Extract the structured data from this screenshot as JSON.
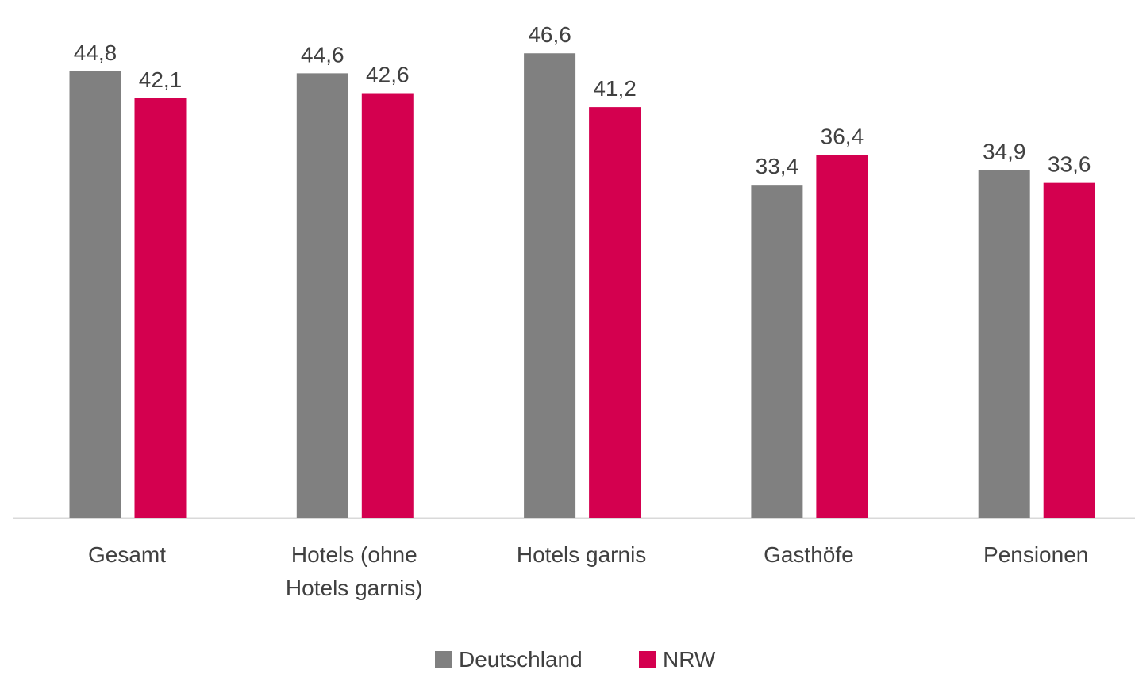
{
  "chart_data": {
    "type": "bar",
    "categories": [
      "Gesamt",
      "Hotels (ohne Hotels garnis)",
      "Hotels garnis",
      "Gasthöfe",
      "Pensionen"
    ],
    "series": [
      {
        "name": "Deutschland",
        "color": "#808080",
        "values": [
          44.8,
          44.6,
          46.6,
          33.4,
          34.9
        ],
        "value_labels": [
          "44,8",
          "44,6",
          "46,6",
          "33,4",
          "34,9"
        ]
      },
      {
        "name": "NRW",
        "color": "#d4004f",
        "values": [
          42.1,
          42.6,
          41.2,
          36.4,
          33.6
        ],
        "value_labels": [
          "42,1",
          "42,6",
          "41,2",
          "36,4",
          "33,6"
        ]
      }
    ],
    "legend": "bottom"
  }
}
